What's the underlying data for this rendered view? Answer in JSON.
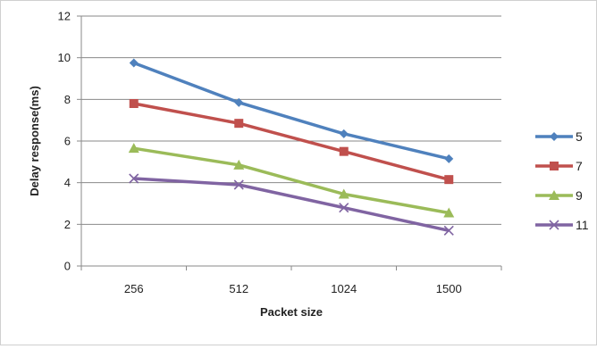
{
  "chart_data": {
    "type": "line",
    "title": "",
    "xlabel": "Packet size",
    "ylabel": "Delay response(ms)",
    "categories": [
      "256",
      "512",
      "1024",
      "1500"
    ],
    "ylim": [
      0,
      12
    ],
    "yticks": [
      0,
      2,
      4,
      6,
      8,
      10,
      12
    ],
    "grid": "horizontal",
    "legend_position": "right",
    "series": [
      {
        "name": "5",
        "values": [
          9.75,
          7.85,
          6.35,
          5.15
        ],
        "color": "#4f81bd",
        "marker": "diamond"
      },
      {
        "name": "7",
        "values": [
          7.8,
          6.85,
          5.5,
          4.15
        ],
        "color": "#c0504d",
        "marker": "square"
      },
      {
        "name": "9",
        "values": [
          5.65,
          4.85,
          3.45,
          2.55
        ],
        "color": "#9bbb59",
        "marker": "triangle"
      },
      {
        "name": "11",
        "values": [
          4.2,
          3.9,
          2.8,
          1.7
        ],
        "color": "#8064a2",
        "marker": "x"
      }
    ]
  }
}
